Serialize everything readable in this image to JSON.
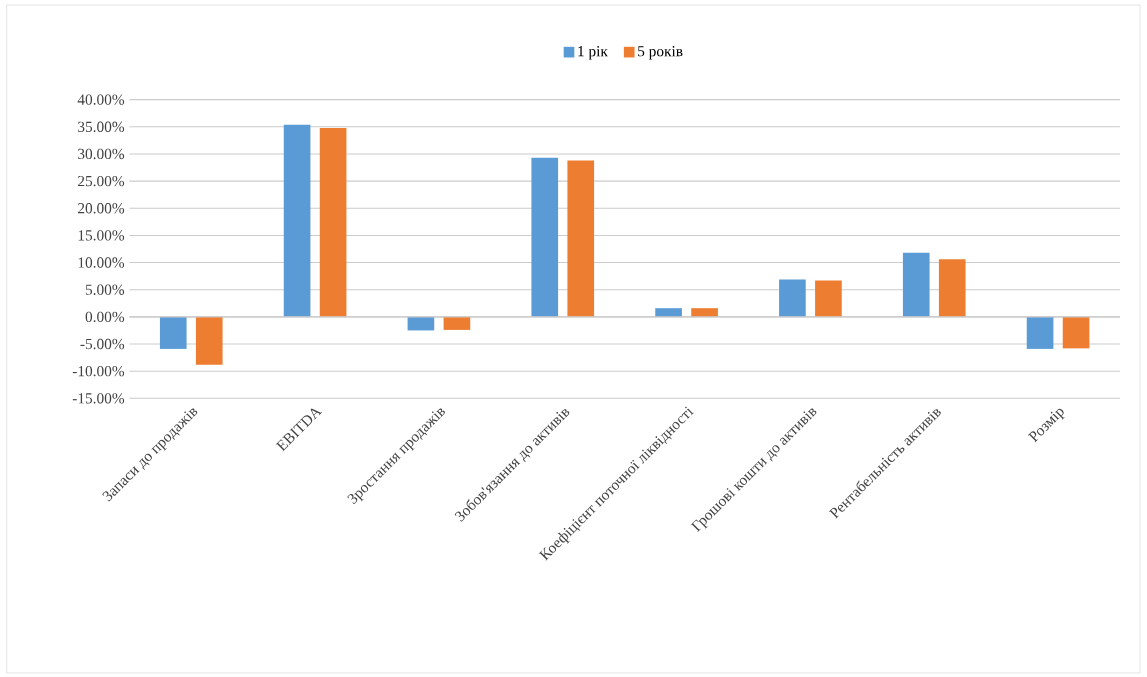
{
  "chart_data": {
    "type": "bar",
    "categories": [
      "Запаси до продажів",
      "EBITDA",
      "Зростання продажів",
      "Зобов'язання до активів",
      "Коефіцієнт поточної ліквідності",
      "Грошові кошти до активів",
      "Рентабельність активів",
      "Розмір"
    ],
    "series": [
      {
        "name": "1 рік",
        "color": "#5b9bd5",
        "values": [
          -5.9,
          35.4,
          -2.5,
          29.3,
          1.6,
          6.9,
          11.8,
          -5.9
        ]
      },
      {
        "name": "5 років",
        "color": "#ed7d31",
        "values": [
          -8.8,
          34.8,
          -2.4,
          28.8,
          1.6,
          6.7,
          10.6,
          -5.8
        ]
      }
    ],
    "ylim": [
      -15,
      40
    ],
    "yticks": [
      {
        "value": -15,
        "label": "-15.00%"
      },
      {
        "value": -10,
        "label": "-10.00%"
      },
      {
        "value": -5,
        "label": "-5.00%"
      },
      {
        "value": 0,
        "label": "0.00%"
      },
      {
        "value": 5,
        "label": "5.00%"
      },
      {
        "value": 10,
        "label": "10.00%"
      },
      {
        "value": 15,
        "label": "15.00%"
      },
      {
        "value": 20,
        "label": "20.00%"
      },
      {
        "value": 25,
        "label": "25.00%"
      },
      {
        "value": 30,
        "label": "30.00%"
      },
      {
        "value": 35,
        "label": "35.00%"
      },
      {
        "value": 40,
        "label": "40.00%"
      }
    ],
    "grid": "y",
    "legend": "top"
  }
}
